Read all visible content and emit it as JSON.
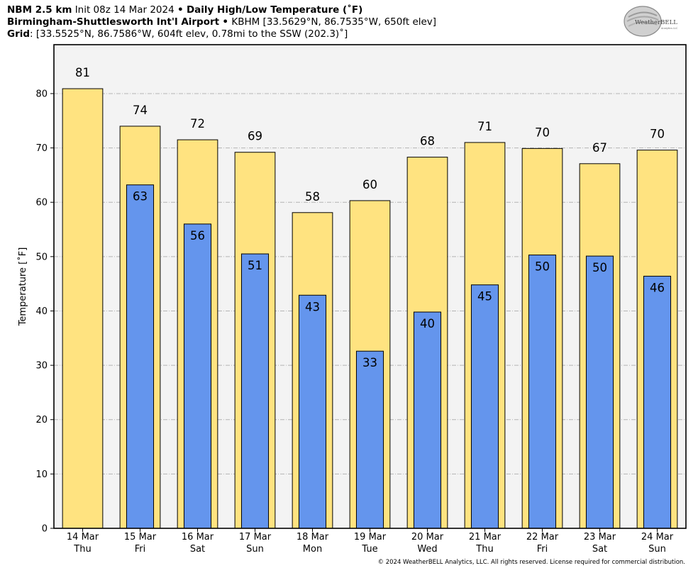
{
  "header": {
    "line1_model": "NBM 2.5 km",
    "line1_init": "Init 08z 14 Mar 2024",
    "line1_sep": "•",
    "line1_product": "Daily High/Low Temperature (˚F)",
    "line2_station": "Birmingham-Shuttlesworth Int'l Airport",
    "line2_sep": "•",
    "line2_details": "KBHM [33.5629°N, 86.7535°W, 650ft elev]",
    "line3_label": "Grid",
    "line3_details": ": [33.5525°N, 86.7586°W, 604ft elev, 0.78mi to the SSW (202.3)˚]"
  },
  "logo": {
    "text_main": "WeatherBELL",
    "text_sub": "Analytics LLC"
  },
  "footer": {
    "copyright": "© 2024 WeatherBELL Analytics, LLC. All rights reserved. License required for commercial distribution."
  },
  "colors": {
    "high": "#ffe380",
    "low": "#6495ed",
    "plot_bg": "#f3f3f3",
    "grid": "#b4b4b4"
  },
  "chart_data": {
    "type": "bar",
    "ylabel": "Temperature [˚F]",
    "ylim": [
      0,
      89
    ],
    "yticks": [
      0,
      10,
      20,
      30,
      40,
      50,
      60,
      70,
      80
    ],
    "grid": true,
    "categories": [
      {
        "date": "14 Mar",
        "day": "Thu"
      },
      {
        "date": "15 Mar",
        "day": "Fri"
      },
      {
        "date": "16 Mar",
        "day": "Sat"
      },
      {
        "date": "17 Mar",
        "day": "Sun"
      },
      {
        "date": "18 Mar",
        "day": "Mon"
      },
      {
        "date": "19 Mar",
        "day": "Tue"
      },
      {
        "date": "20 Mar",
        "day": "Wed"
      },
      {
        "date": "21 Mar",
        "day": "Thu"
      },
      {
        "date": "22 Mar",
        "day": "Fri"
      },
      {
        "date": "23 Mar",
        "day": "Sat"
      },
      {
        "date": "24 Mar",
        "day": "Sun"
      }
    ],
    "series": [
      {
        "key": "high",
        "values": [
          80.9,
          74.0,
          71.5,
          69.2,
          58.1,
          60.3,
          68.3,
          71.0,
          69.9,
          67.1,
          69.6
        ],
        "labels": [
          "81",
          "74",
          "72",
          "69",
          "58",
          "60",
          "68",
          "71",
          "70",
          "67",
          "70"
        ]
      },
      {
        "key": "low",
        "values": [
          null,
          63.2,
          56.0,
          50.5,
          42.9,
          32.6,
          39.8,
          44.8,
          50.3,
          50.1,
          46.4
        ],
        "labels": [
          "",
          "63",
          "56",
          "51",
          "43",
          "33",
          "40",
          "45",
          "50",
          "50",
          "46"
        ]
      }
    ]
  }
}
